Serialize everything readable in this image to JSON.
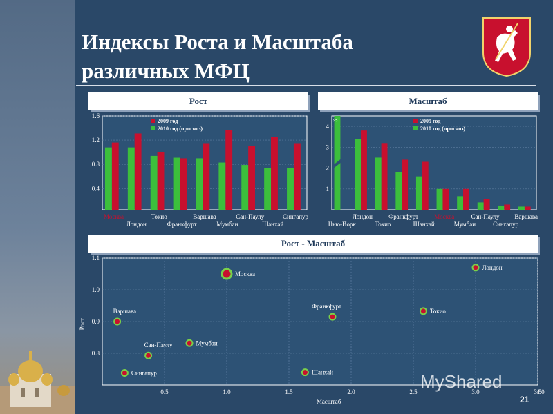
{
  "title_line1": "Индексы Роста и Масштаба",
  "title_line2": "различных МФЦ",
  "page_number": "21",
  "watermark": "MyShared",
  "colors": {
    "red": "#c8102e",
    "green": "#3cbf3c",
    "bg": "#2a4868",
    "plot_bg": "#2d5275",
    "text": "#ffffff",
    "highlight": "#c8102e"
  },
  "chart_data": [
    {
      "id": "rost",
      "type": "bar",
      "title": "Рост",
      "categories": [
        "Москва",
        "Лондон",
        "Токио",
        "Франкфурт",
        "Варшава",
        "Мумбаи",
        "Сан-Паулу",
        "Шанхай",
        "Сингапур"
      ],
      "series": [
        {
          "name": "2009 год",
          "color": "#c8102e",
          "values": [
            1.16,
            1.31,
            1.0,
            0.9,
            1.15,
            1.37,
            1.11,
            1.25,
            1.15
          ]
        },
        {
          "name": "2010 год (прогноз)",
          "color": "#3cbf3c",
          "values": [
            1.08,
            1.08,
            0.94,
            0.91,
            0.9,
            0.83,
            0.79,
            0.74,
            0.74
          ]
        }
      ],
      "ylim": [
        0.05,
        1.6
      ],
      "yticks": [
        "0.4",
        "0.8",
        "1.2",
        "1.6"
      ],
      "highlight_category": "Москва",
      "legend": "top"
    },
    {
      "id": "masshtab",
      "type": "bar",
      "title": "Масштаб",
      "categories": [
        "Нью-Йорк",
        "Лондон",
        "Токио",
        "Франкфурт",
        "Шанхай",
        "Москва",
        "Мумбаи",
        "Сан-Паулу",
        "Сингапур",
        "Варшава"
      ],
      "series": [
        {
          "name": "2009 год",
          "color": "#c8102e",
          "values": [
            null,
            3.8,
            3.2,
            2.4,
            2.3,
            1.0,
            1.0,
            0.5,
            0.25,
            0.15
          ]
        },
        {
          "name": "2010 год (прогноз)",
          "color": "#3cbf3c",
          "values": [
            5.0,
            3.4,
            2.5,
            1.8,
            1.6,
            1.0,
            0.65,
            0.35,
            0.2,
            0.15
          ]
        }
      ],
      "ylim": [
        0,
        4.5
      ],
      "yticks": [
        "1",
        "2",
        "3",
        "4"
      ],
      "axis_break_symbol": "≈",
      "highlight_category": "Москва",
      "legend": "top"
    },
    {
      "id": "scatter",
      "type": "scatter",
      "title": "Рост - Масштаб",
      "xlabel": "Масштаб",
      "ylabel": "Рост",
      "xlim": [
        0,
        3.5
      ],
      "ylim": [
        0.7,
        1.1
      ],
      "xticks": [
        "0.5",
        "1.0",
        "1.5",
        "2.0",
        "2.5",
        "3.0",
        "3.5",
        "4.0"
      ],
      "yticks": [
        "0.8",
        "0.9",
        "1.0",
        "1.1"
      ],
      "points": [
        {
          "label": "Лондон",
          "x": 3.0,
          "y": 1.07,
          "label_side": "right"
        },
        {
          "label": "Москва",
          "x": 1.0,
          "y": 1.05,
          "label_side": "right",
          "highlight": true
        },
        {
          "label": "Франкфурт",
          "x": 1.85,
          "y": 0.915,
          "label_side": "above"
        },
        {
          "label": "Токио",
          "x": 2.58,
          "y": 0.933,
          "label_side": "right"
        },
        {
          "label": "Варшава",
          "x": 0.12,
          "y": 0.9,
          "label_side": "above"
        },
        {
          "label": "Мумбаи",
          "x": 0.7,
          "y": 0.832,
          "label_side": "right"
        },
        {
          "label": "Сан-Паулу",
          "x": 0.37,
          "y": 0.793,
          "label_side": "above"
        },
        {
          "label": "Сингапур",
          "x": 0.18,
          "y": 0.738,
          "label_side": "right"
        },
        {
          "label": "Шанхай",
          "x": 1.63,
          "y": 0.74,
          "label_side": "right"
        }
      ]
    }
  ]
}
